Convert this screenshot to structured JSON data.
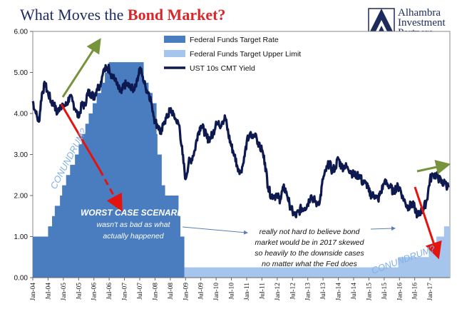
{
  "title": {
    "prefix": "What Moves the ",
    "highlight": "Bond Market?"
  },
  "logo": {
    "line1": "Alhambra",
    "line2": "Investment",
    "line3": "Partners"
  },
  "colors": {
    "title_navy": "#1d2a5c",
    "title_red": "#d9262a",
    "target_rate": "#4a7cc0",
    "upper_limit": "#a6c5ec",
    "yield_line": "#0e1a4f",
    "arrow_red": "#e3140f",
    "arrow_green": "#77933c"
  },
  "annotations": {
    "conundrum_left": "CONUNDRUM?",
    "conundrum_right": "CONUNDRUM?",
    "worst_case": [
      "WORST CASE SCENARIO",
      "wasn't as bad as what",
      "actually happened"
    ],
    "note": [
      "really not hard to believe bond",
      "market would be in 2017 skewed",
      "so heavily to the downside cases",
      "no matter what the Fed does"
    ]
  },
  "chart_data": {
    "type": "area",
    "xlim": [
      2004.0,
      2017.65
    ],
    "ylim": [
      0,
      6
    ],
    "y_ticks": [
      "0.00",
      "1.00",
      "2.00",
      "3.00",
      "4.00",
      "5.00",
      "6.00"
    ],
    "x_tick_labels": [
      "Jan-04",
      "Jul-04",
      "Jan-05",
      "Jul-05",
      "Jan-06",
      "Jul-06",
      "Jan-07",
      "Jul-07",
      "Jan-08",
      "Jul-08",
      "Jan-09",
      "Jul-09",
      "Jan-10",
      "Jul-10",
      "Jan-11",
      "Jul-11",
      "Jan-12",
      "Jul-12",
      "Jan-13",
      "Jul-13",
      "Jan-14",
      "Jul-14",
      "Jan-15",
      "Jul-15",
      "Jan-16",
      "Jul-16",
      "Jan-17"
    ],
    "legend": [
      "Federal Funds Target Rate",
      "Federal Funds Target Upper Limit",
      "UST 10s CMT Yield"
    ],
    "series": [
      {
        "name": "Federal Funds Target Rate",
        "kind": "step-area",
        "x": [
          2004.0,
          2004.5,
          2004.63,
          2004.72,
          2004.89,
          2004.96,
          2005.09,
          2005.22,
          2005.38,
          2005.5,
          2005.6,
          2005.72,
          2005.83,
          2005.96,
          2006.09,
          2006.24,
          2006.36,
          2006.49,
          2007.63,
          2007.79,
          2007.92,
          2008.05,
          2008.08,
          2008.22,
          2008.33,
          2008.77,
          2008.83,
          2008.96
        ],
        "values": [
          1.0,
          1.25,
          1.5,
          1.75,
          2.0,
          2.25,
          2.5,
          2.75,
          3.0,
          3.25,
          3.5,
          3.75,
          4.0,
          4.25,
          4.5,
          4.75,
          5.0,
          5.25,
          4.75,
          4.5,
          4.25,
          3.5,
          3.0,
          2.25,
          2.0,
          1.5,
          1.0,
          0.0
        ]
      },
      {
        "name": "Federal Funds Target Upper Limit",
        "kind": "step-area",
        "x": [
          2008.96,
          2015.96,
          2016.96,
          2017.21,
          2017.46,
          2017.65
        ],
        "values": [
          0.25,
          0.5,
          0.75,
          1.0,
          1.25,
          1.25
        ]
      },
      {
        "name": "UST 10s CMT Yield",
        "kind": "line",
        "x": [
          2004.0,
          2004.1,
          2004.2,
          2004.3,
          2004.4,
          2004.5,
          2004.6,
          2004.7,
          2004.8,
          2004.9,
          2005.0,
          2005.1,
          2005.2,
          2005.3,
          2005.4,
          2005.5,
          2005.6,
          2005.7,
          2005.8,
          2005.9,
          2006.0,
          2006.1,
          2006.2,
          2006.3,
          2006.4,
          2006.5,
          2006.6,
          2006.7,
          2006.8,
          2006.9,
          2007.0,
          2007.1,
          2007.2,
          2007.3,
          2007.4,
          2007.5,
          2007.6,
          2007.7,
          2007.8,
          2007.9,
          2008.0,
          2008.1,
          2008.2,
          2008.3,
          2008.4,
          2008.5,
          2008.6,
          2008.7,
          2008.8,
          2008.9,
          2009.0,
          2009.1,
          2009.2,
          2009.3,
          2009.4,
          2009.5,
          2009.6,
          2009.7,
          2009.8,
          2009.9,
          2010.0,
          2010.1,
          2010.2,
          2010.3,
          2010.4,
          2010.5,
          2010.6,
          2010.7,
          2010.8,
          2010.9,
          2011.0,
          2011.1,
          2011.2,
          2011.3,
          2011.4,
          2011.5,
          2011.6,
          2011.7,
          2011.8,
          2011.9,
          2012.0,
          2012.1,
          2012.2,
          2012.3,
          2012.4,
          2012.5,
          2012.6,
          2012.7,
          2012.8,
          2012.9,
          2013.0,
          2013.1,
          2013.2,
          2013.3,
          2013.4,
          2013.5,
          2013.6,
          2013.7,
          2013.8,
          2013.9,
          2014.0,
          2014.1,
          2014.2,
          2014.3,
          2014.4,
          2014.5,
          2014.6,
          2014.7,
          2014.8,
          2014.9,
          2015.0,
          2015.1,
          2015.2,
          2015.3,
          2015.4,
          2015.5,
          2015.6,
          2015.7,
          2015.8,
          2015.9,
          2016.0,
          2016.1,
          2016.2,
          2016.3,
          2016.4,
          2016.5,
          2016.6,
          2016.7,
          2016.8,
          2016.9,
          2017.0,
          2017.1,
          2017.2,
          2017.3,
          2017.4,
          2017.5,
          2017.6
        ],
        "values": [
          4.3,
          4.0,
          3.8,
          4.5,
          4.7,
          4.5,
          4.3,
          4.2,
          4.0,
          4.2,
          4.2,
          4.2,
          4.4,
          4.3,
          4.1,
          3.9,
          4.2,
          4.2,
          4.5,
          4.5,
          4.4,
          4.6,
          4.7,
          5.0,
          5.1,
          5.1,
          4.9,
          4.8,
          4.6,
          4.5,
          4.7,
          4.7,
          4.6,
          4.6,
          4.8,
          5.1,
          4.9,
          4.6,
          4.5,
          4.2,
          3.8,
          3.7,
          3.5,
          3.8,
          3.9,
          4.1,
          4.0,
          3.8,
          3.7,
          3.0,
          2.4,
          2.8,
          2.9,
          3.1,
          3.5,
          3.7,
          3.6,
          3.4,
          3.4,
          3.5,
          3.8,
          3.7,
          3.8,
          3.9,
          3.5,
          3.2,
          3.0,
          2.7,
          2.6,
          2.8,
          3.3,
          3.5,
          3.4,
          3.5,
          3.2,
          3.1,
          2.8,
          2.2,
          2.0,
          2.0,
          2.0,
          1.9,
          2.2,
          2.1,
          1.8,
          1.6,
          1.5,
          1.6,
          1.7,
          1.7,
          1.8,
          2.0,
          1.9,
          1.8,
          1.9,
          2.4,
          2.6,
          2.8,
          2.6,
          2.7,
          2.9,
          2.7,
          2.7,
          2.7,
          2.6,
          2.5,
          2.5,
          2.5,
          2.3,
          2.3,
          2.1,
          2.0,
          2.0,
          1.9,
          2.1,
          2.3,
          2.3,
          2.2,
          2.1,
          2.2,
          2.2,
          2.0,
          1.8,
          1.7,
          1.8,
          1.7,
          1.5,
          1.6,
          1.7,
          1.9,
          2.4,
          2.5,
          2.5,
          2.4,
          2.3,
          2.3,
          2.2
        ]
      }
    ]
  }
}
